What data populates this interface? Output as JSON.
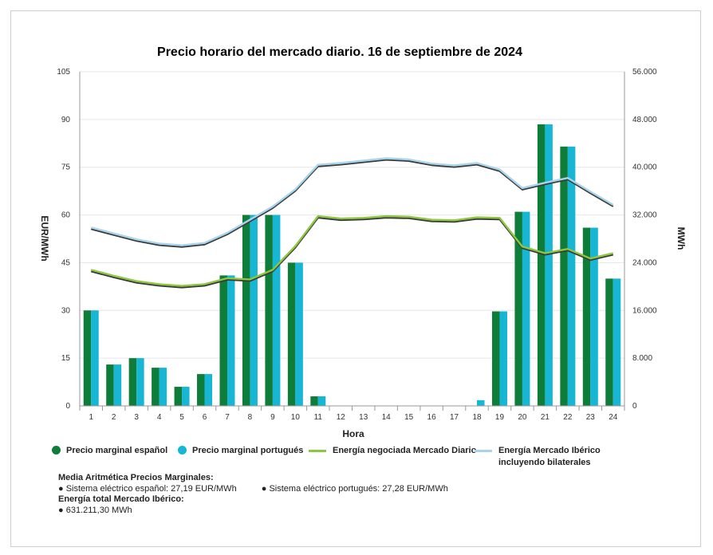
{
  "chart_data": {
    "type": "bar+line",
    "title": "Precio horario del mercado diario. 16 de septiembre de 2024",
    "xlabel": "Hora",
    "ylabel_left": "EUR/MWh",
    "ylabel_right": "MWh",
    "categories": [
      "1",
      "2",
      "3",
      "4",
      "5",
      "6",
      "7",
      "8",
      "9",
      "10",
      "11",
      "12",
      "13",
      "14",
      "15",
      "16",
      "17",
      "18",
      "19",
      "20",
      "21",
      "22",
      "23",
      "24"
    ],
    "y_left_ticks": [
      "0",
      "15",
      "30",
      "45",
      "60",
      "75",
      "90",
      "105"
    ],
    "y_right_ticks": [
      "0",
      "8.000",
      "16.000",
      "24.000",
      "32.000",
      "40.000",
      "48.000",
      "56.000"
    ],
    "ylim_left": [
      0,
      105
    ],
    "ylim_right": [
      0,
      56000
    ],
    "grid": true,
    "series": [
      {
        "name": "Precio marginal español",
        "type": "bar",
        "axis": "left",
        "color": "#0f7d3a",
        "values": [
          30,
          13,
          15,
          12,
          6,
          10,
          41,
          60,
          60,
          45,
          3,
          0,
          0,
          0,
          0,
          0,
          0,
          0,
          29.7,
          61,
          88.5,
          81.5,
          56,
          40
        ]
      },
      {
        "name": "Precio marginal portugués",
        "type": "bar",
        "axis": "left",
        "color": "#16b6d4",
        "values": [
          30,
          13,
          15,
          12,
          6,
          10,
          41,
          60,
          60,
          45,
          3,
          0,
          0,
          0,
          0,
          0,
          0,
          1.8,
          29.7,
          61,
          88.5,
          81.5,
          56,
          40
        ]
      },
      {
        "name": "Energía negociada Mercado Diario",
        "type": "line",
        "axis": "right",
        "color": "#8dc63f",
        "values": [
          22800,
          21800,
          20900,
          20400,
          20100,
          20400,
          21400,
          21200,
          22800,
          26800,
          31800,
          31400,
          31500,
          31800,
          31700,
          31200,
          31100,
          31600,
          31500,
          26700,
          25600,
          26300,
          24700,
          25600
        ]
      },
      {
        "name": "Energía Mercado Ibérico incluyendo bilaterales",
        "type": "line",
        "axis": "right",
        "color": "#a7d4ec",
        "values": [
          29900,
          28900,
          27900,
          27200,
          26900,
          27300,
          29000,
          31200,
          33400,
          36300,
          40400,
          40700,
          41100,
          41500,
          41300,
          40600,
          40300,
          40700,
          39600,
          36500,
          37400,
          38200,
          35900,
          33700
        ]
      }
    ]
  },
  "legend": [
    {
      "label": "Precio marginal español",
      "color": "#0f7d3a",
      "kind": "dot"
    },
    {
      "label": "Precio marginal portugués",
      "color": "#16b6d4",
      "kind": "dot"
    },
    {
      "label": "Energía negociada Mercado Diario",
      "color": "#8dc63f",
      "kind": "line"
    },
    {
      "label": "Energía Mercado Ibérico incluyendo bilaterales",
      "color": "#a7d4ec",
      "kind": "line"
    }
  ],
  "stats": {
    "media_title": "Media Aritmética Precios Marginales:",
    "media_es": "Sistema eléctrico español: 27,19 EUR/MWh",
    "media_pt": "Sistema eléctrico portugués: 27,28 EUR/MWh",
    "energia_title": "Energía total Mercado Ibérico:",
    "energia_value": "631.211,30 MWh"
  },
  "colors": {
    "grid": "#e6e6e6",
    "axis": "#999999",
    "line_shadow": "#3a3a3a"
  }
}
